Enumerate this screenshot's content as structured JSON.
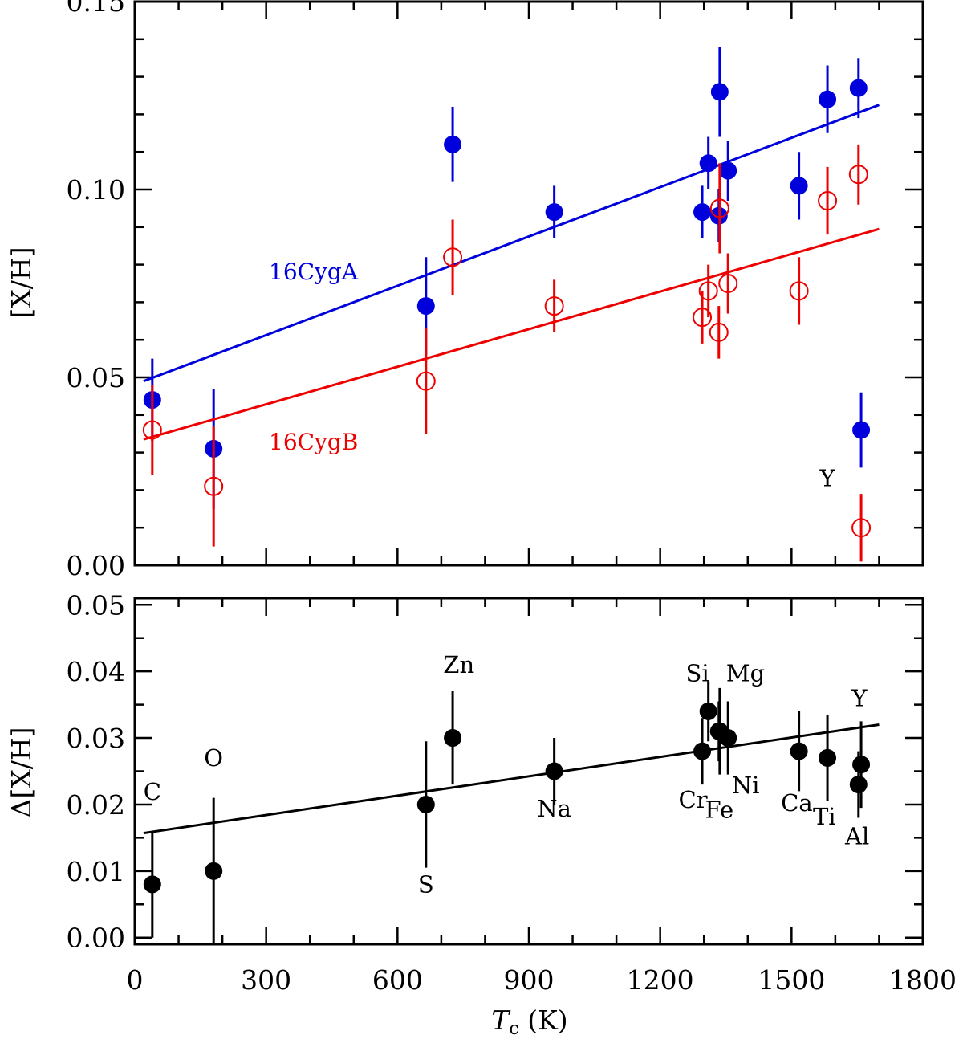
{
  "chart_data": [
    {
      "type": "scatter",
      "ylabel": "[X/H]",
      "xlim": [
        0,
        1800
      ],
      "ylim": [
        0.0,
        0.15
      ],
      "yticks": [
        "0.00",
        "0.05",
        "0.10",
        "0.15"
      ],
      "series": [
        {
          "name": "16CygA",
          "color": "#0000dd",
          "marker": "filled-circle",
          "points": [
            {
              "x": 40,
              "y": 0.044,
              "err": 0.011
            },
            {
              "x": 180,
              "y": 0.031,
              "err": 0.016
            },
            {
              "x": 665,
              "y": 0.069,
              "err": 0.013
            },
            {
              "x": 726,
              "y": 0.112,
              "err": 0.01
            },
            {
              "x": 958,
              "y": 0.094,
              "err": 0.007
            },
            {
              "x": 1296,
              "y": 0.094,
              "err": 0.007
            },
            {
              "x": 1310,
              "y": 0.107,
              "err": 0.007
            },
            {
              "x": 1334,
              "y": 0.093,
              "err": 0.007
            },
            {
              "x": 1336,
              "y": 0.126,
              "err": 0.012
            },
            {
              "x": 1355,
              "y": 0.105,
              "err": 0.008
            },
            {
              "x": 1517,
              "y": 0.101,
              "err": 0.009
            },
            {
              "x": 1582,
              "y": 0.124,
              "err": 0.009
            },
            {
              "x": 1653,
              "y": 0.127,
              "err": 0.008
            },
            {
              "x": 1659,
              "y": 0.036,
              "err": 0.01
            }
          ],
          "fit": {
            "x": [
              20,
              1700
            ],
            "y": [
              0.049,
              0.1225
            ]
          }
        },
        {
          "name": "16CygB",
          "color": "#ee0000",
          "marker": "open-circle",
          "points": [
            {
              "x": 40,
              "y": 0.036,
              "err": 0.012
            },
            {
              "x": 180,
              "y": 0.021,
              "err": 0.016
            },
            {
              "x": 665,
              "y": 0.049,
              "err": 0.014
            },
            {
              "x": 726,
              "y": 0.082,
              "err": 0.01
            },
            {
              "x": 958,
              "y": 0.069,
              "err": 0.007
            },
            {
              "x": 1296,
              "y": 0.066,
              "err": 0.007
            },
            {
              "x": 1310,
              "y": 0.073,
              "err": 0.007
            },
            {
              "x": 1334,
              "y": 0.062,
              "err": 0.007
            },
            {
              "x": 1336,
              "y": 0.095,
              "err": 0.012
            },
            {
              "x": 1355,
              "y": 0.075,
              "err": 0.008
            },
            {
              "x": 1517,
              "y": 0.073,
              "err": 0.009
            },
            {
              "x": 1582,
              "y": 0.097,
              "err": 0.009
            },
            {
              "x": 1653,
              "y": 0.104,
              "err": 0.008
            },
            {
              "x": 1659,
              "y": 0.01,
              "err": 0.009
            }
          ],
          "fit": {
            "x": [
              20,
              1700
            ],
            "y": [
              0.0335,
              0.0895
            ]
          }
        }
      ],
      "annotations": [
        {
          "text": "Y",
          "x": 1582,
          "y": 0.021
        }
      ]
    },
    {
      "type": "scatter",
      "xlabel_main": "T",
      "xlabel_sub": "c",
      "xlabel_unit": " (K)",
      "ylabel": "Δ[X/H]",
      "xlim": [
        0,
        1800
      ],
      "ylim": [
        -0.001,
        0.051
      ],
      "xticks": [
        "0",
        "300",
        "600",
        "900",
        "1200",
        "1500",
        "1800"
      ],
      "yticks": [
        "0.00",
        "0.01",
        "0.02",
        "0.03",
        "0.04",
        "0.05"
      ],
      "series": [
        {
          "color": "#000000",
          "marker": "filled-circle",
          "points": [
            {
              "label": "C",
              "x": 40,
              "y": 0.008,
              "err": 0.008
            },
            {
              "label": "O",
              "x": 180,
              "y": 0.01,
              "err": 0.011
            },
            {
              "label": "S",
              "x": 665,
              "y": 0.02,
              "err": 0.0095
            },
            {
              "label": "Zn",
              "x": 726,
              "y": 0.03,
              "err": 0.007
            },
            {
              "label": "Na",
              "x": 958,
              "y": 0.025,
              "err": 0.005
            },
            {
              "label": "Cr",
              "x": 1296,
              "y": 0.028,
              "err": 0.005
            },
            {
              "label": "Si",
              "x": 1310,
              "y": 0.034,
              "err": 0.0045
            },
            {
              "label": "Fe",
              "x": 1334,
              "y": 0.031,
              "err": 0.0045
            },
            {
              "label": "Mg",
              "x": 1336,
              "y": 0.031,
              "err": 0.0065
            },
            {
              "label": "Ni",
              "x": 1355,
              "y": 0.03,
              "err": 0.0055
            },
            {
              "label": "Ca",
              "x": 1517,
              "y": 0.028,
              "err": 0.006
            },
            {
              "label": "Ti",
              "x": 1582,
              "y": 0.027,
              "err": 0.0065
            },
            {
              "label": "Y",
              "x": 1659,
              "y": 0.026,
              "err": 0.0065
            },
            {
              "label": "Al",
              "x": 1653,
              "y": 0.023,
              "err": 0.005
            }
          ],
          "fit": {
            "x": [
              20,
              1700
            ],
            "y": [
              0.0157,
              0.032
            ]
          }
        }
      ],
      "labels": [
        {
          "text": "C",
          "x": 40,
          "y": 0.0207
        },
        {
          "text": "O",
          "x": 180,
          "y": 0.0258
        },
        {
          "text": "S",
          "x": 665,
          "y": 0.0068
        },
        {
          "text": "Zn",
          "x": 740,
          "y": 0.0398
        },
        {
          "text": "Na",
          "x": 958,
          "y": 0.0182
        },
        {
          "text": "Cr",
          "x": 1275,
          "y": 0.0195
        },
        {
          "text": "Si",
          "x": 1285,
          "y": 0.0385
        },
        {
          "text": "Fe",
          "x": 1335,
          "y": 0.018
        },
        {
          "text": "Mg",
          "x": 1395,
          "y": 0.0385
        },
        {
          "text": "Ni",
          "x": 1395,
          "y": 0.0217
        },
        {
          "text": "Ca",
          "x": 1512,
          "y": 0.019
        },
        {
          "text": "Ti",
          "x": 1575,
          "y": 0.017
        },
        {
          "text": "Y",
          "x": 1655,
          "y": 0.0348
        },
        {
          "text": "Al",
          "x": 1650,
          "y": 0.014
        }
      ]
    }
  ]
}
